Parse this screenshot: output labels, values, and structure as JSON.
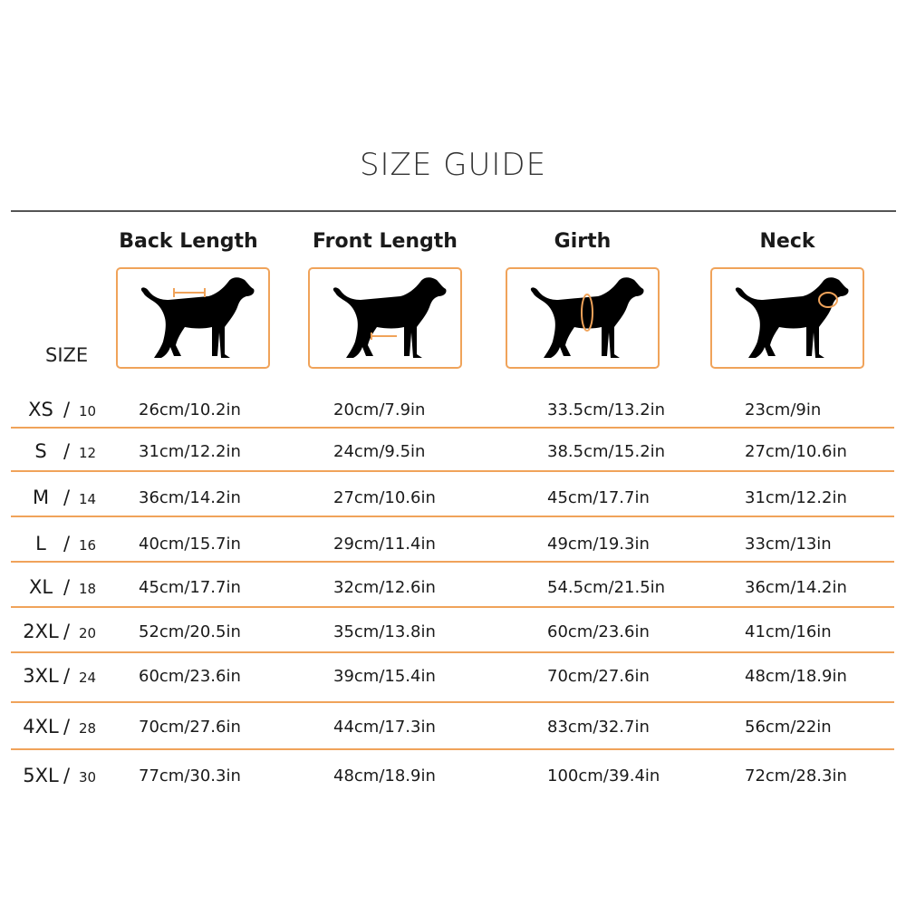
{
  "title": "SIZE GUIDE",
  "size_header": "SIZE",
  "columns": [
    {
      "label": "Back Length",
      "icon": "dog-back-length-icon"
    },
    {
      "label": "Front Length",
      "icon": "dog-front-length-icon"
    },
    {
      "label": "Girth",
      "icon": "dog-girth-icon"
    },
    {
      "label": "Neck",
      "icon": "dog-neck-icon"
    }
  ],
  "rows": [
    {
      "size": "XS",
      "num": "10",
      "values": [
        "26cm/10.2in",
        "20cm/7.9in",
        "33.5cm/13.2in",
        "23cm/9in"
      ]
    },
    {
      "size": "S",
      "num": "12",
      "values": [
        "31cm/12.2in",
        "24cm/9.5in",
        "38.5cm/15.2in",
        "27cm/10.6in"
      ]
    },
    {
      "size": "M",
      "num": "14",
      "values": [
        "36cm/14.2in",
        "27cm/10.6in",
        "45cm/17.7in",
        "31cm/12.2in"
      ]
    },
    {
      "size": "L",
      "num": "16",
      "values": [
        "40cm/15.7in",
        "29cm/11.4in",
        "49cm/19.3in",
        "33cm/13in"
      ]
    },
    {
      "size": "XL",
      "num": "18",
      "values": [
        "45cm/17.7in",
        "32cm/12.6in",
        "54.5cm/21.5in",
        "36cm/14.2in"
      ]
    },
    {
      "size": "2XL",
      "num": "20",
      "values": [
        "52cm/20.5in",
        "35cm/13.8in",
        "60cm/23.6in",
        "41cm/16in"
      ]
    },
    {
      "size": "3XL",
      "num": "24",
      "values": [
        "60cm/23.6in",
        "39cm/15.4in",
        "70cm/27.6in",
        "48cm/18.9in"
      ]
    },
    {
      "size": "4XL",
      "num": "28",
      "values": [
        "70cm/27.6in",
        "44cm/17.3in",
        "83cm/32.7in",
        "56cm/22in"
      ]
    },
    {
      "size": "5XL",
      "num": "30",
      "values": [
        "77cm/30.3in",
        "48cm/18.9in",
        "100cm/39.4in",
        "72cm/28.3in"
      ]
    }
  ],
  "colors": {
    "accent": "#f0a35a",
    "text": "#1a1a1a",
    "silhouette": "#000000"
  }
}
